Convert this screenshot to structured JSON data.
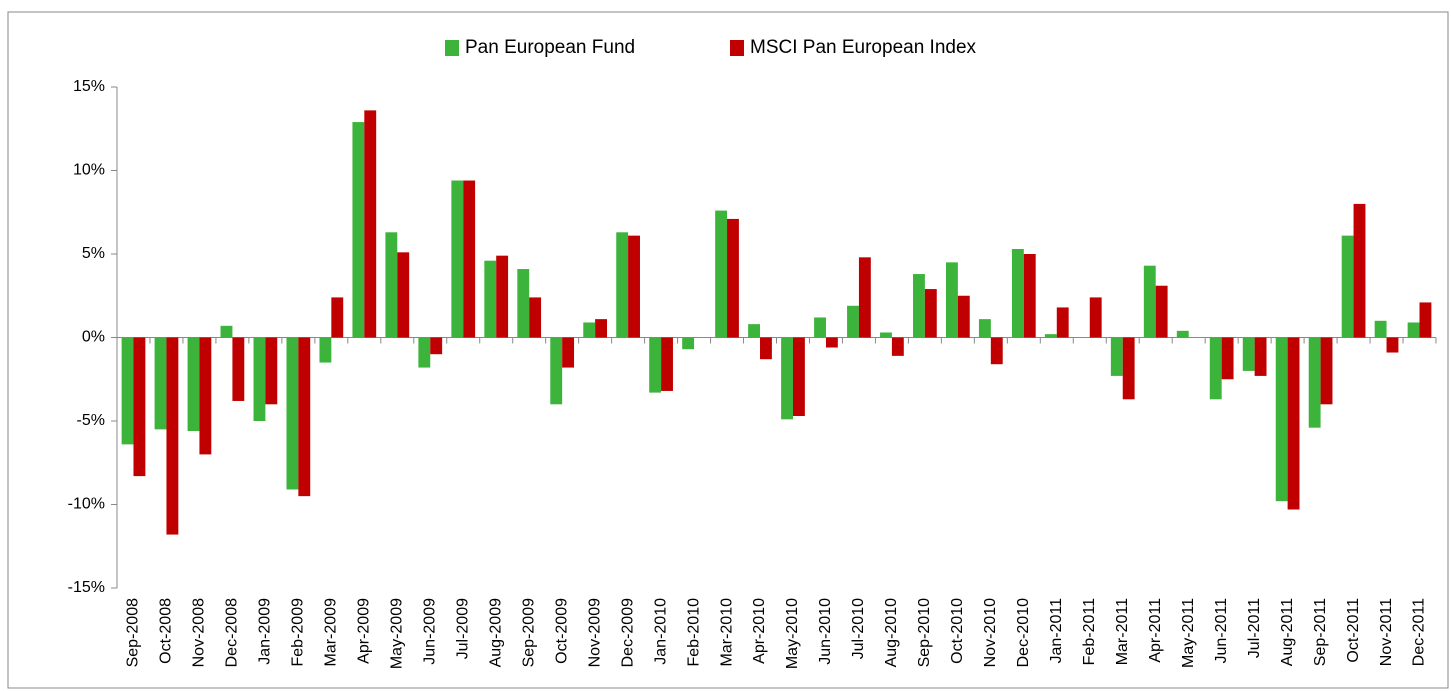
{
  "chart_data": {
    "type": "bar",
    "categories": [
      "Sep-2008",
      "Oct-2008",
      "Nov-2008",
      "Dec-2008",
      "Jan-2009",
      "Feb-2009",
      "Mar-2009",
      "Apr-2009",
      "May-2009",
      "Jun-2009",
      "Jul-2009",
      "Aug-2009",
      "Sep-2009",
      "Oct-2009",
      "Nov-2009",
      "Dec-2009",
      "Jan-2010",
      "Feb-2010",
      "Mar-2010",
      "Apr-2010",
      "May-2010",
      "Jun-2010",
      "Jul-2010",
      "Aug-2010",
      "Sep-2010",
      "Oct-2010",
      "Nov-2010",
      "Dec-2010",
      "Jan-2011",
      "Feb-2011",
      "Mar-2011",
      "Apr-2011",
      "May-2011",
      "Jun-2011",
      "Jul-2011",
      "Aug-2011",
      "Sep-2011",
      "Oct-2011",
      "Nov-2011",
      "Dec-2011"
    ],
    "series": [
      {
        "name": "Pan European Fund",
        "color": "#3cb43c",
        "values": [
          -6.4,
          -5.5,
          -5.6,
          0.7,
          -5.0,
          -9.1,
          -1.5,
          12.9,
          6.3,
          -1.8,
          9.4,
          4.6,
          4.1,
          -4.0,
          0.9,
          6.3,
          -3.3,
          -0.7,
          7.6,
          0.8,
          -4.9,
          1.2,
          1.9,
          0.3,
          3.8,
          4.5,
          1.1,
          5.3,
          0.2,
          0.0,
          -2.3,
          4.3,
          0.4,
          -3.7,
          -2.0,
          -9.8,
          -5.4,
          6.1,
          1.0,
          0.9
        ]
      },
      {
        "name": "MSCI Pan European Index",
        "color": "#c00000",
        "values": [
          -8.3,
          -11.8,
          -7.0,
          -3.8,
          -4.0,
          -9.5,
          2.4,
          13.6,
          5.1,
          -1.0,
          9.4,
          4.9,
          2.4,
          -1.8,
          1.1,
          6.1,
          -3.2,
          0.0,
          7.1,
          -1.3,
          -4.7,
          -0.6,
          4.8,
          -1.1,
          2.9,
          2.5,
          -1.6,
          5.0,
          1.8,
          2.4,
          -3.7,
          3.1,
          0.0,
          -2.5,
          -2.3,
          -10.3,
          -4.0,
          8.0,
          -0.9,
          2.1
        ]
      }
    ],
    "ylim": [
      -15,
      15
    ],
    "yticks": [
      {
        "value": -15,
        "label": "-15%"
      },
      {
        "value": -10,
        "label": "-10%"
      },
      {
        "value": -5,
        "label": "-5%"
      },
      {
        "value": 0,
        "label": "0%"
      },
      {
        "value": 5,
        "label": "5%"
      },
      {
        "value": 10,
        "label": "10%"
      },
      {
        "value": 15,
        "label": "15%"
      }
    ],
    "legend": "top"
  }
}
